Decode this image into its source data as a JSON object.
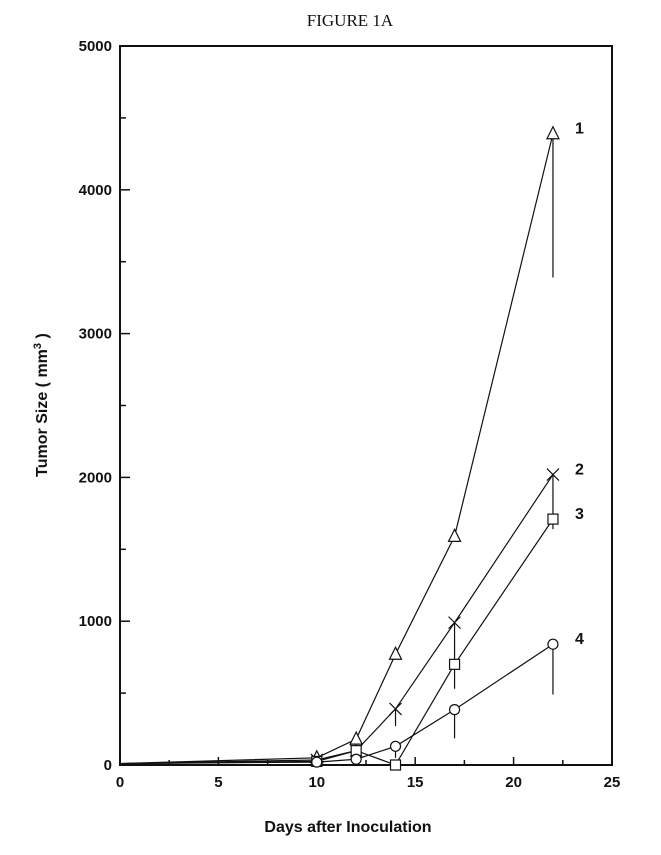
{
  "chart_data": {
    "type": "line",
    "title": "FIGURE 1A",
    "xlabel": "Days after Inoculation",
    "ylabel": "Tumor Size ( mm",
    "ylabel_superscript": "3",
    "ylabel_suffix": " )",
    "xlim": [
      0,
      25
    ],
    "ylim": [
      0,
      5000
    ],
    "xticks": [
      0,
      5,
      10,
      15,
      20,
      25
    ],
    "yticks": [
      0,
      1000,
      2000,
      3000,
      4000,
      5000
    ],
    "grid": false,
    "series": [
      {
        "name": "1",
        "marker": "triangle",
        "x": [
          0,
          10,
          12,
          14,
          17,
          22
        ],
        "y": [
          10,
          50,
          180,
          770,
          1590,
          4390
        ],
        "error": [
          0,
          0,
          80,
          0,
          0,
          1000
        ]
      },
      {
        "name": "2",
        "marker": "x",
        "x": [
          0,
          10,
          12,
          14,
          17,
          22
        ],
        "y": [
          10,
          35,
          100,
          390,
          990,
          2020
        ],
        "error": [
          0,
          0,
          0,
          120,
          260,
          380
        ]
      },
      {
        "name": "3",
        "marker": "square",
        "x": [
          0,
          10,
          12,
          14,
          17,
          22
        ],
        "y": [
          10,
          25,
          100,
          0,
          700,
          1710
        ],
        "error": [
          0,
          0,
          0,
          0,
          170,
          0
        ]
      },
      {
        "name": "4",
        "marker": "circle",
        "x": [
          0,
          10,
          12,
          14,
          17,
          22
        ],
        "y": [
          10,
          20,
          40,
          130,
          385,
          840
        ],
        "error": [
          0,
          0,
          0,
          80,
          200,
          350
        ]
      }
    ]
  }
}
